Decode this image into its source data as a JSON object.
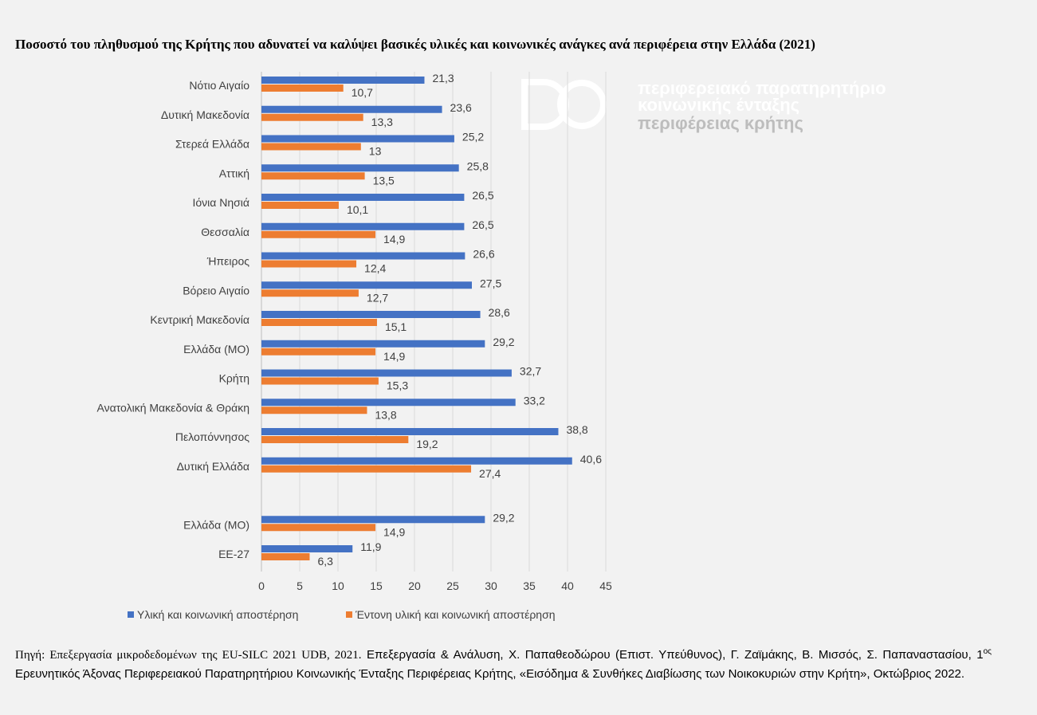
{
  "title": "Ποσοστό του πληθυσμού της Κρήτης που αδυνατεί να καλύψει βασικές υλικές και κοινωνικές ανάγκες ανά περιφέρεια στην Ελλάδα (2021)",
  "logo": {
    "line1": "περιφερειακό παρατηρητήριο",
    "line2": "κοινωνικής ένταξης",
    "line3": "περιφέρειας κρήτης"
  },
  "colors": {
    "series1": "#4472c4",
    "series2": "#ed7d31",
    "grid": "#d9d9d9",
    "text": "#404040"
  },
  "chart_data": {
    "type": "bar",
    "orientation": "horizontal",
    "categories": [
      "Νότιο Αιγαίο",
      "Δυτική Μακεδονία",
      "Στερεά Ελλάδα",
      "Αττική",
      "Ιόνια Νησιά",
      "Θεσσαλία",
      "Ήπειρος",
      "Βόρειο Αιγαίο",
      "Κεντρική Μακεδονία",
      "Ελλάδα (ΜΟ)",
      "Κρήτη",
      "Ανατολική Μακεδονία & Θράκη",
      "Πελοπόννησος",
      "Δυτική Ελλάδα",
      "",
      "Ελλάδα (ΜΟ)",
      "ΕΕ-27"
    ],
    "series": [
      {
        "name": "Υλική και κοινωνική αποστέρηση",
        "color": "#4472c4",
        "values": [
          21.3,
          23.6,
          25.2,
          25.8,
          26.5,
          26.5,
          26.6,
          27.5,
          28.6,
          29.2,
          32.7,
          33.2,
          38.8,
          40.6,
          null,
          29.2,
          11.9
        ],
        "labels": [
          "21,3",
          "23,6",
          "25,2",
          "25,8",
          "26,5",
          "26,5",
          "26,6",
          "27,5",
          "28,6",
          "29,2",
          "32,7",
          "33,2",
          "38,8",
          "40,6",
          "",
          "29,2",
          "11,9"
        ]
      },
      {
        "name": "Έντονη υλική και κοινωνική αποστέρηση",
        "color": "#ed7d31",
        "values": [
          10.7,
          13.3,
          13,
          13.5,
          10.1,
          14.9,
          12.4,
          12.7,
          15.1,
          14.9,
          15.3,
          13.8,
          19.2,
          27.4,
          null,
          14.9,
          6.3
        ],
        "labels": [
          "10,7",
          "13,3",
          "13",
          "13,5",
          "10,1",
          "14,9",
          "12,4",
          "12,7",
          "15,1",
          "14,9",
          "15,3",
          "13,8",
          "19,2",
          "27,4",
          "",
          "14,9",
          "6,3"
        ]
      }
    ],
    "xlim": [
      0,
      45
    ],
    "xticks": [
      "0",
      "5",
      "10",
      "15",
      "20",
      "25",
      "30",
      "35",
      "40",
      "45"
    ],
    "grid": "vertical",
    "legend": "bottom"
  },
  "source": {
    "part1": "Πηγή: Επεξεργασία μικροδεδομένων της EU-SILC 2021 UDB, 2021.",
    "part2": " Επεξεργασία & Ανάλυση, Χ. Παπαθεοδώρου (Επιστ. Υπεύθυνος), Γ. Ζαϊμάκης, Β. Μισσός, Σ. Παπαναστασίου, 1",
    "sup": "ος",
    "part3": " Ερευνητικός Άξονας Περιφερειακού Παρατηρητήριου Κοινωνικής Ένταξης Περιφέρειας Κρήτης, «Εισόδημα & Συνθήκες Διαβίωσης των Νοικοκυριών στην Κρήτη», Οκτώβριος 2022."
  }
}
